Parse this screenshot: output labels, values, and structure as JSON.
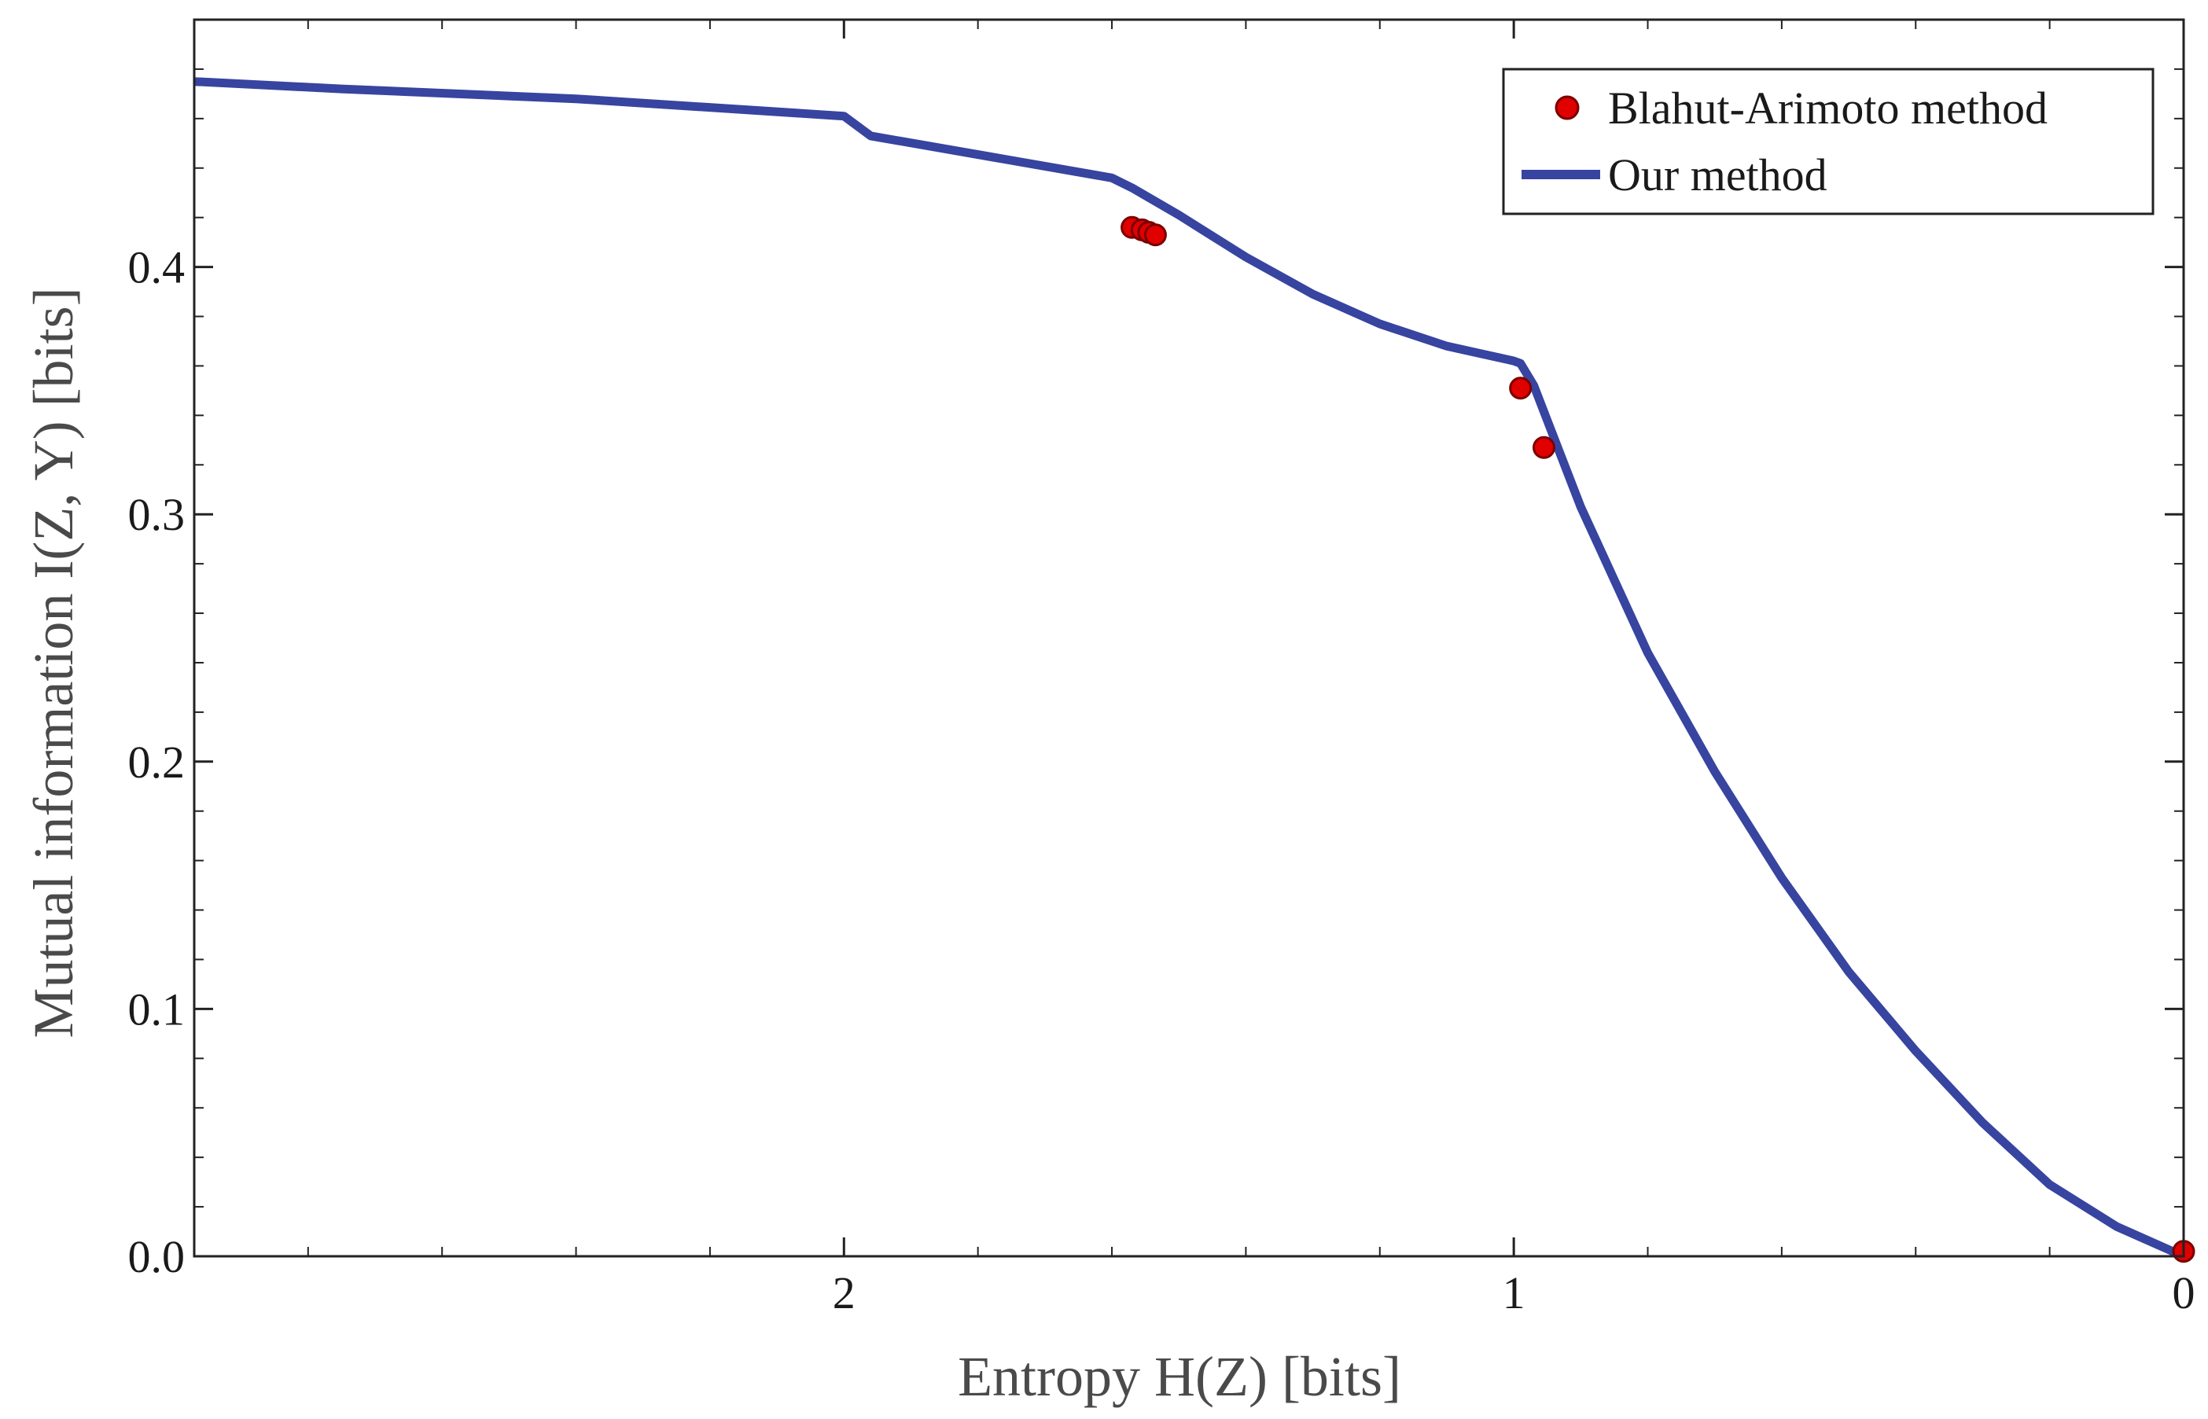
{
  "chart_data": {
    "type": "scatter",
    "title": "",
    "xlabel": "Entropy H(Z) [bits]",
    "ylabel": "Mutual information I(Z, Y) [bits]",
    "xlim": [
      2.97,
      0
    ],
    "ylim": [
      0,
      0.5
    ],
    "x_ticks": [
      2,
      1,
      0
    ],
    "x_tick_labels": [
      "2",
      "1",
      "0"
    ],
    "y_ticks": [
      0.0,
      0.1,
      0.2,
      0.3,
      0.4
    ],
    "y_tick_labels": [
      "0.0",
      "0.1",
      "0.2",
      "0.3",
      "0.4"
    ],
    "grid": false,
    "legend_position": "top-right",
    "series": [
      {
        "name": "Blahut-Arimoto method",
        "kind": "scatter",
        "color": "#e00000",
        "x": [
          1.57,
          1.555,
          1.545,
          1.535,
          0.99,
          0.955,
          0.0
        ],
        "y": [
          0.416,
          0.415,
          0.414,
          0.413,
          0.351,
          0.327,
          0.002
        ]
      },
      {
        "name": "Our method",
        "kind": "line",
        "color": "#3744a0",
        "x": [
          2.97,
          2.75,
          2.4,
          2.0,
          1.96,
          1.6,
          1.57,
          1.5,
          1.4,
          1.3,
          1.2,
          1.1,
          1.0,
          0.99,
          0.97,
          0.95,
          0.9,
          0.8,
          0.7,
          0.6,
          0.5,
          0.4,
          0.3,
          0.2,
          0.1,
          0.0
        ],
        "y": [
          0.475,
          0.472,
          0.468,
          0.461,
          0.453,
          0.436,
          0.432,
          0.421,
          0.404,
          0.389,
          0.377,
          0.368,
          0.362,
          0.361,
          0.352,
          0.338,
          0.303,
          0.244,
          0.196,
          0.153,
          0.115,
          0.083,
          0.054,
          0.029,
          0.012,
          0.0
        ]
      }
    ]
  }
}
